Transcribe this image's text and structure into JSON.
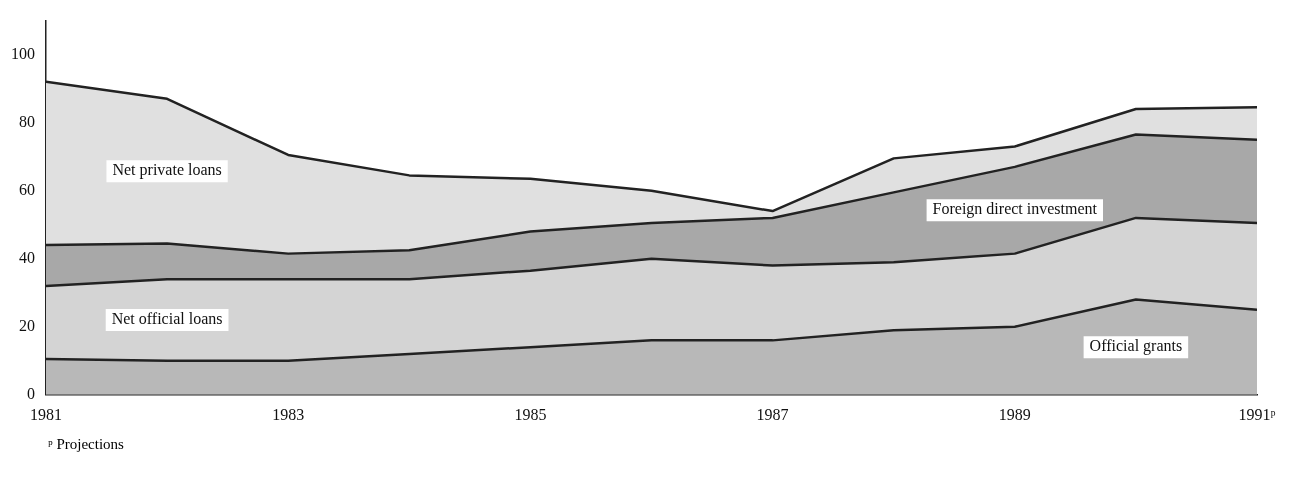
{
  "chart_data": {
    "type": "area",
    "stacked": true,
    "x": [
      1981,
      1982,
      1983,
      1984,
      1985,
      1986,
      1987,
      1988,
      1989,
      1990,
      1991
    ],
    "series": [
      {
        "name": "Official grants",
        "color": "#b8b8b8",
        "values": [
          10.5,
          10,
          10,
          12,
          14,
          16,
          16,
          19,
          20,
          28,
          25
        ]
      },
      {
        "name": "Net official loans",
        "color": "#d4d4d4",
        "values": [
          21.5,
          24,
          24,
          22,
          22.5,
          24,
          22,
          20,
          21.5,
          24,
          25.5
        ]
      },
      {
        "name": "Foreign direct investment",
        "color": "#a8a8a8",
        "values": [
          12,
          10.5,
          7.5,
          8.5,
          11.5,
          10.5,
          14,
          20.5,
          25.5,
          24.5,
          24.5
        ]
      },
      {
        "name": "Net private loans",
        "color": "#e0e0e0",
        "values": [
          48,
          42.5,
          29,
          22,
          15.5,
          9.5,
          2,
          10,
          6,
          7.5,
          9.5
        ]
      }
    ],
    "xlim": [
      1981,
      1991
    ],
    "xticks": [
      1981,
      1983,
      1985,
      1987,
      1989,
      {
        "value": 1991,
        "label": "1991ᵖ"
      }
    ],
    "ylim": [
      0,
      110
    ],
    "yticks": [
      0,
      20,
      40,
      60,
      80,
      100
    ],
    "grid": false,
    "legend": false,
    "annotations": [
      "ᵖ Projections"
    ]
  }
}
